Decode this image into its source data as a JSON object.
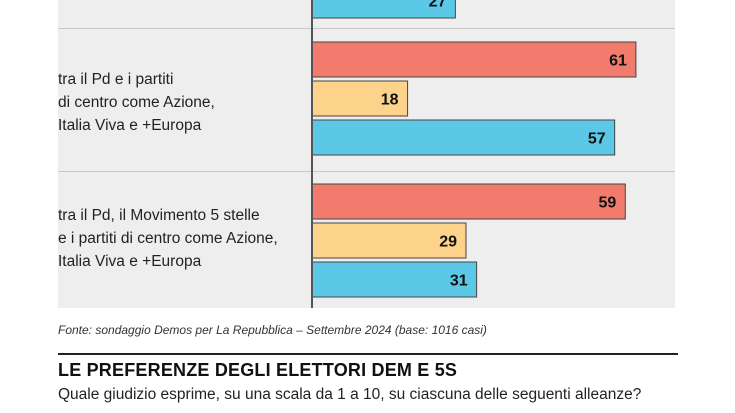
{
  "colors": {
    "panel_bg": "#eeeeee",
    "red": "#f27b6e",
    "yellow": "#fdd38b",
    "blue": "#5bc8e8"
  },
  "chart_data": {
    "type": "bar",
    "orientation": "horizontal",
    "grid": false,
    "legend": "none",
    "categories": [
      "tra il Pd e i partiti\ndi centro come Azione,\nItalia Viva e +Europa",
      "tra il Pd, il Movimento 5 stelle\ne i partiti di centro come Azione,\nItalia Viva e +Europa"
    ],
    "partial_top_value": 27,
    "series": [
      {
        "color": "#f27b6e",
        "values": [
          61,
          59
        ]
      },
      {
        "color": "#fdd38b",
        "values": [
          18,
          29
        ]
      },
      {
        "color": "#5bc8e8",
        "values": [
          57,
          31
        ]
      }
    ]
  },
  "source_note": "Fonte: sondaggio Demos per La Repubblica – Settembre 2024 (base: 1016 casi)",
  "next_section": {
    "title": "LE PREFERENZE DEGLI ELETTORI DEM E 5S",
    "question": "Quale giudizio esprime, su una scala da 1 a 10, su ciascuna delle seguenti alleanze?"
  }
}
